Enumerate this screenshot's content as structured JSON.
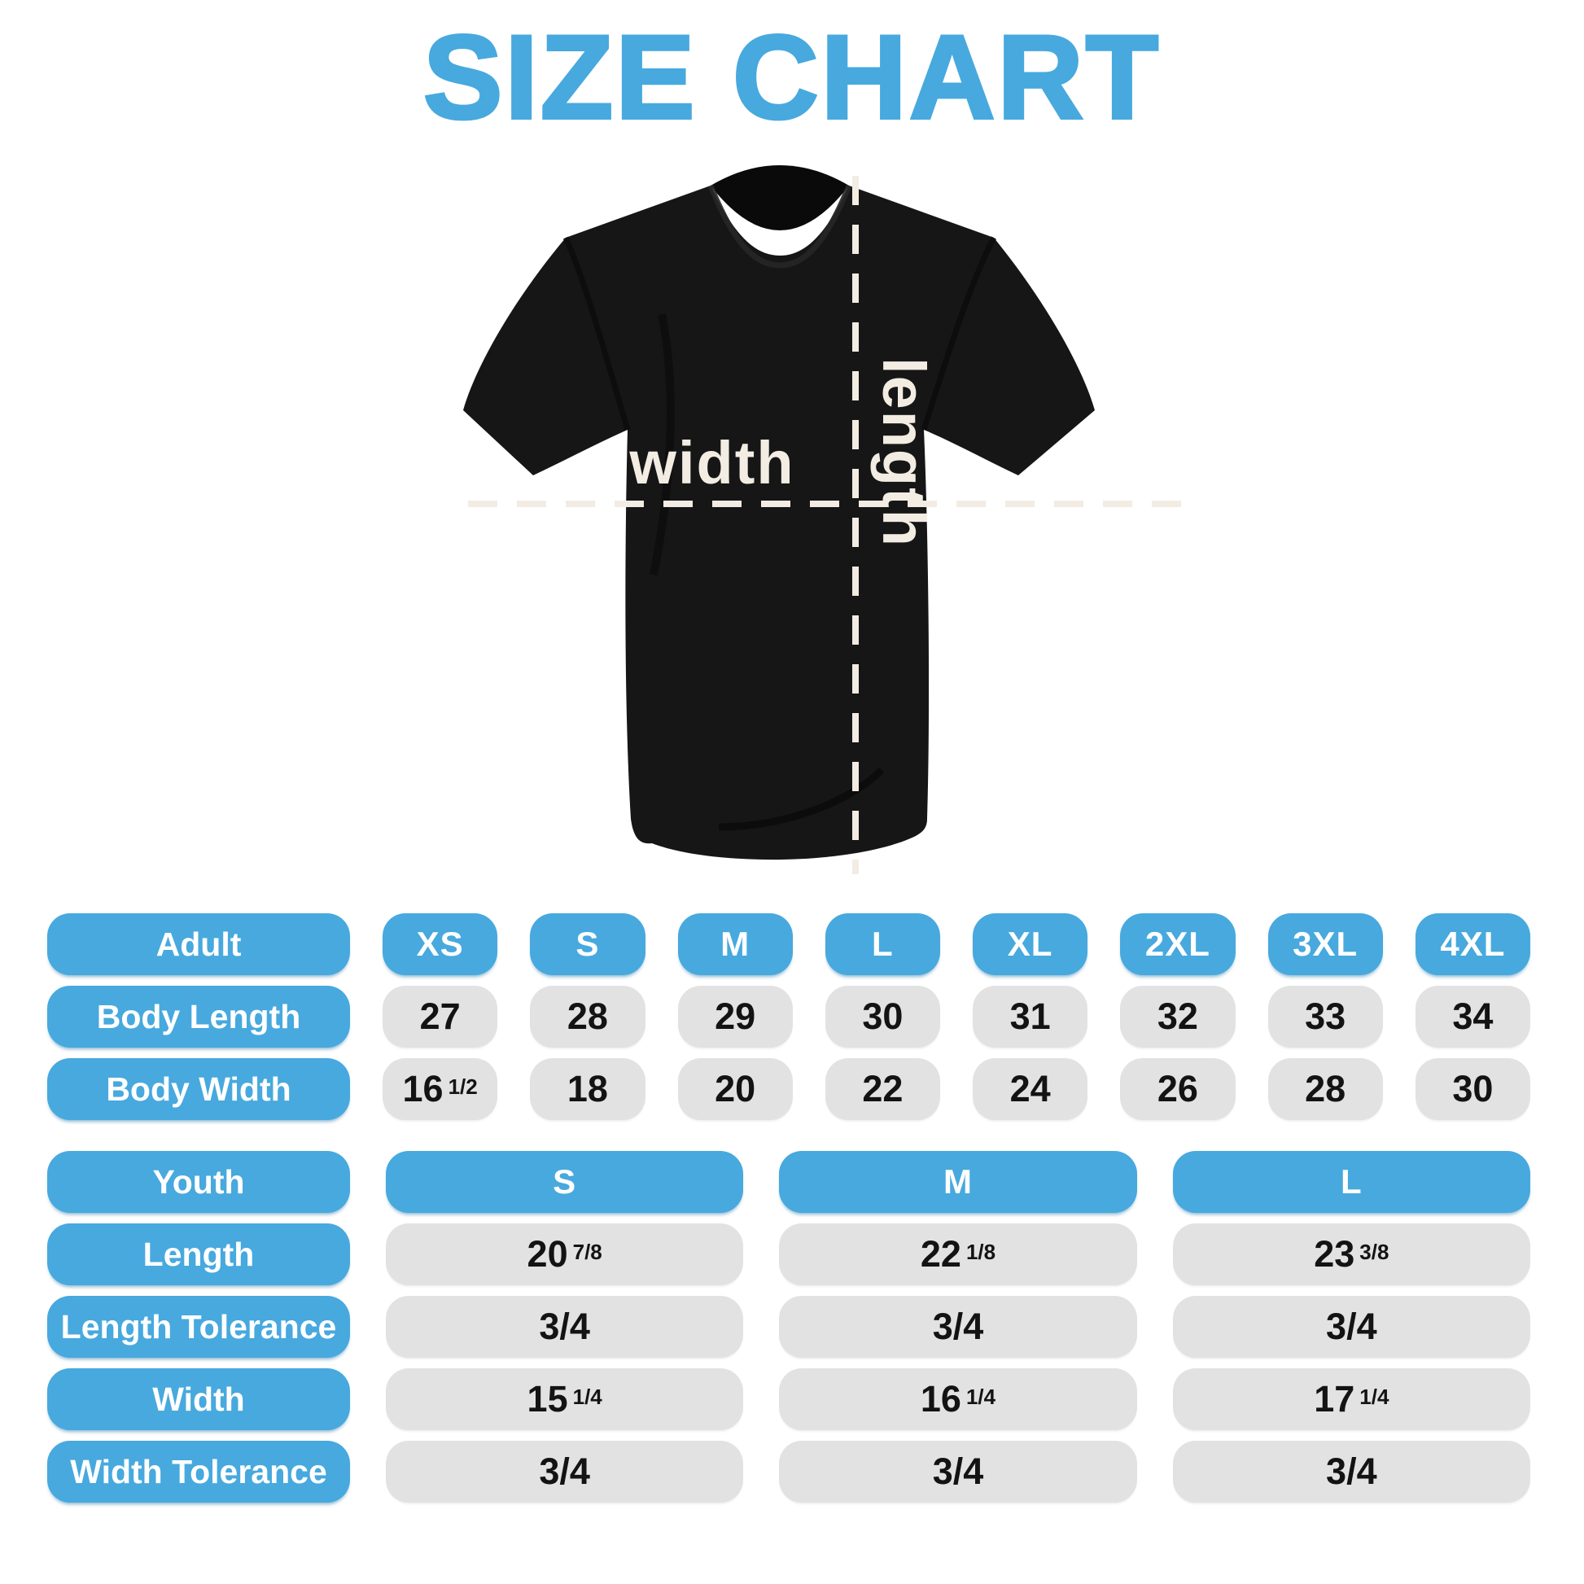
{
  "page": {
    "title": "SIZE CHART"
  },
  "colors": {
    "accent_blue": "#47A9DE",
    "pill_gray": "#E2E2E3",
    "shirt_black": "#161616",
    "measure_cream": "#F2ECE2",
    "value_text": "#131313",
    "background": "#FFFFFF"
  },
  "diagram": {
    "width_label": "width",
    "length_label": "length"
  },
  "adult_table": {
    "header": {
      "label": "Adult",
      "sizes": [
        "XS",
        "S",
        "M",
        "L",
        "XL",
        "2XL",
        "3XL",
        "4XL"
      ]
    },
    "rows": [
      {
        "label": "Body Length",
        "values": [
          {
            "main": "27"
          },
          {
            "main": "28"
          },
          {
            "main": "29"
          },
          {
            "main": "30"
          },
          {
            "main": "31"
          },
          {
            "main": "32"
          },
          {
            "main": "33"
          },
          {
            "main": "34"
          }
        ]
      },
      {
        "label": "Body Width",
        "values": [
          {
            "main": "16",
            "frac": "1/2"
          },
          {
            "main": "18"
          },
          {
            "main": "20"
          },
          {
            "main": "22"
          },
          {
            "main": "24"
          },
          {
            "main": "26"
          },
          {
            "main": "28"
          },
          {
            "main": "30"
          }
        ]
      }
    ]
  },
  "youth_table": {
    "header": {
      "label": "Youth",
      "sizes": [
        "S",
        "M",
        "L"
      ]
    },
    "rows": [
      {
        "label": "Length",
        "values": [
          {
            "main": "20",
            "frac": "7/8"
          },
          {
            "main": "22",
            "frac": "1/8"
          },
          {
            "main": "23",
            "frac": "3/8"
          }
        ]
      },
      {
        "label": "Length Tolerance",
        "values": [
          {
            "main": "3/4"
          },
          {
            "main": "3/4"
          },
          {
            "main": "3/4"
          }
        ]
      },
      {
        "label": "Width",
        "values": [
          {
            "main": "15",
            "frac": "1/4"
          },
          {
            "main": "16",
            "frac": "1/4"
          },
          {
            "main": "17",
            "frac": "1/4"
          }
        ]
      },
      {
        "label": "Width Tolerance",
        "values": [
          {
            "main": "3/4"
          },
          {
            "main": "3/4"
          },
          {
            "main": "3/4"
          }
        ]
      }
    ]
  }
}
